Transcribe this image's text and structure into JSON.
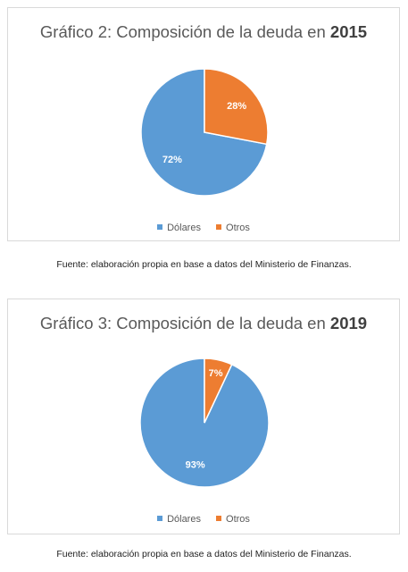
{
  "charts": [
    {
      "title_prefix": "Gráfico 2: Composición de la deuda en ",
      "title_year": "2015",
      "caption": "Fuente: elaboración propia en base a datos del Ministerio de Finanzas.",
      "legend": [
        "Dólares",
        "Otros"
      ]
    },
    {
      "title_prefix": "Gráfico 3: Composición de la deuda en ",
      "title_year": "2019",
      "caption": "Fuente: elaboración propia en base a datos del Ministerio de Finanzas.",
      "legend": [
        "Dólares",
        "Otros"
      ]
    }
  ],
  "chart_data": [
    {
      "type": "pie",
      "title": "Gráfico 2: Composición de la deuda en 2015",
      "categories": [
        "Dólares",
        "Otros"
      ],
      "values": [
        72,
        28
      ],
      "labels": [
        "72%",
        "28%"
      ],
      "colors": [
        "#5B9BD5",
        "#ED7D31"
      ],
      "legend_position": "bottom"
    },
    {
      "type": "pie",
      "title": "Gráfico 3: Composición de la deuda en 2019",
      "categories": [
        "Dólares",
        "Otros"
      ],
      "values": [
        93,
        7
      ],
      "labels": [
        "93%",
        "7%"
      ],
      "colors": [
        "#5B9BD5",
        "#ED7D31"
      ],
      "legend_position": "bottom"
    }
  ]
}
